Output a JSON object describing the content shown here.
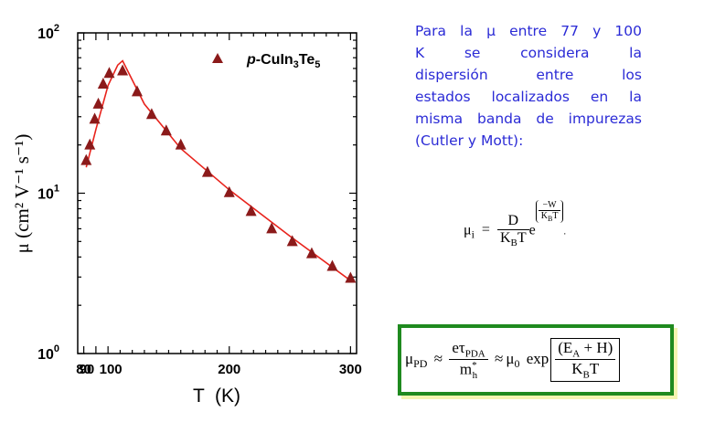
{
  "chart_data": {
    "type": "scatter",
    "y_scale": "log",
    "xlim": [
      75,
      305
    ],
    "ylim": [
      1,
      100
    ],
    "xlabel": "T  (K)",
    "ylabel": "μ (cm² V⁻¹ s⁻¹)",
    "x_ticks": [
      "80",
      "90",
      "100",
      "200",
      "300"
    ],
    "y_ticks": [
      {
        "base": "10",
        "exp": "0"
      },
      {
        "base": "10",
        "exp": "1"
      },
      {
        "base": "10",
        "exp": "2"
      }
    ],
    "legend_position": "top-right",
    "series": [
      {
        "name": "p-CuIn3Te5",
        "marker": "triangle",
        "color": "#8b1a1a",
        "x": [
          82,
          85,
          89,
          92,
          96,
          101,
          112,
          124,
          136,
          148,
          160,
          182,
          200,
          218,
          235,
          252,
          268,
          285,
          300
        ],
        "y": [
          16,
          20,
          29,
          36,
          48,
          56,
          58,
          43,
          31,
          24.5,
          20,
          13.5,
          10.1,
          7.7,
          6.0,
          5.0,
          4.2,
          3.5,
          2.95
        ]
      }
    ],
    "fit_line": {
      "color": "#e8231c",
      "x": [
        82,
        90,
        100,
        108,
        112,
        130,
        160,
        200,
        250,
        300
      ],
      "y": [
        14.5,
        25,
        47,
        63,
        67,
        36,
        19,
        10.5,
        5.4,
        2.85
      ]
    }
  },
  "legend": {
    "label_prefix": "p",
    "label_main": "-CuIn",
    "sub1": "3",
    "label_mid": "Te",
    "sub2": "5"
  },
  "description": {
    "lines": [
      "Para la  μ  entre 77 y 100",
      "K  se  considera  la",
      "dispersión  entre  los",
      "estados localizados en la",
      "misma banda de impurezas",
      "(Cutler y Mott):"
    ]
  },
  "formula1": {
    "lhs": "μ",
    "lhs_sub": "i",
    "eq": "=",
    "num": "D",
    "den": "K",
    "den_sub": "B",
    "den_tail": "T",
    "exp_base": "e",
    "exp_num": "−W",
    "exp_den": "K",
    "exp_den_sub": "B",
    "exp_den_tail": "T",
    "tail": "."
  },
  "formula2": {
    "lhs": "μ",
    "lhs_sub": "PD",
    "approx1": "≈",
    "num": "eτ",
    "num_sub": "PDA",
    "den": "m",
    "den_sup": "*",
    "den_sub": "h",
    "approx2": "≈",
    "mid": "μ",
    "mid_sub": "0",
    "exp_word": "exp",
    "frac_num": "(E",
    "frac_num_sub": "A",
    "frac_num_tail": " + H)",
    "frac_den": "K",
    "frac_den_sub": "B",
    "frac_den_tail": "T"
  }
}
